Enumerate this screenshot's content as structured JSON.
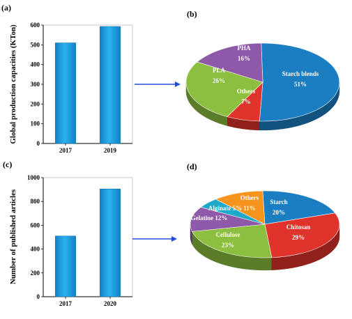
{
  "chart_data": [
    {
      "type": "bar",
      "panel": "(a)",
      "ylabel": "Global production capacities (KTon)",
      "categories": [
        "2017",
        "2019"
      ],
      "values": [
        510,
        593
      ],
      "ylim": [
        0,
        600
      ],
      "yticks": [
        "0",
        "100",
        "200",
        "300",
        "400",
        "500",
        "600"
      ],
      "color": "#1c9fdd"
    },
    {
      "type": "pie",
      "panel": "(b)",
      "slices": [
        {
          "label": "Starch blends",
          "value_label": "51%",
          "value": 51,
          "color": "#1b7ec2"
        },
        {
          "label": "Others",
          "value_label": "7%",
          "value": 7,
          "color": "#e0332b"
        },
        {
          "label": "PLA",
          "value_label": "26%",
          "value": 26,
          "color": "#8cbe3f"
        },
        {
          "label": "PHA",
          "value_label": "16%",
          "value": 16,
          "color": "#8e59a8"
        }
      ]
    },
    {
      "type": "bar",
      "panel": "(c)",
      "ylabel": "Number of published articles",
      "categories": [
        "2017",
        "2020"
      ],
      "values": [
        510,
        905
      ],
      "ylim": [
        0,
        1000
      ],
      "yticks": [
        "0",
        "200",
        "400",
        "600",
        "800",
        "1000"
      ],
      "color": "#1c9fdd"
    },
    {
      "type": "pie",
      "panel": "(d)",
      "slices": [
        {
          "label": "Starch",
          "value_label": "20%",
          "value": 20,
          "color": "#1b7ec2"
        },
        {
          "label": "Chitosan",
          "value_label": "29%",
          "value": 29,
          "color": "#e0332b"
        },
        {
          "label": "Cellulose",
          "value_label": "23%",
          "value": 23,
          "color": "#8cbe3f"
        },
        {
          "label": "Gelatine 12%",
          "value_label": "",
          "value": 12,
          "color": "#8e59a8"
        },
        {
          "label": "Alginate 5%",
          "value_label": "",
          "value": 5,
          "color": "#1fa9c9"
        },
        {
          "label": "Others",
          "value_label": "11%",
          "value": 11,
          "color": "#f7941d"
        }
      ]
    }
  ],
  "arrow_color": "#1f4fd8"
}
